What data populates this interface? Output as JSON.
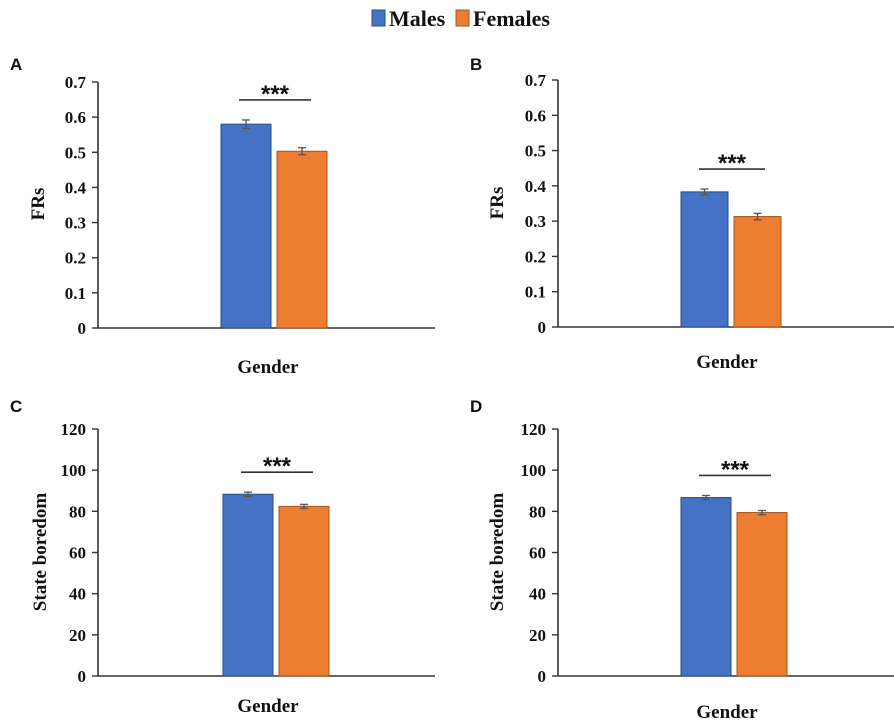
{
  "legend": {
    "items": [
      {
        "label": "Males",
        "color": "#4472C4"
      },
      {
        "label": "Females",
        "color": "#ED7D31"
      }
    ]
  },
  "chart_data": [
    {
      "panel": "A",
      "type": "bar",
      "categories": [
        "Gender"
      ],
      "series": [
        {
          "name": "Males",
          "values": [
            0.58
          ],
          "error": [
            0.012
          ]
        },
        {
          "name": "Females",
          "values": [
            0.503
          ],
          "error": [
            0.01
          ]
        }
      ],
      "xlabel": "Gender",
      "ylabel": "FRs",
      "ylim": [
        0,
        0.7
      ],
      "yticks": [
        "0",
        "0.1",
        "0.2",
        "0.3",
        "0.4",
        "0.5",
        "0.6",
        "0.7"
      ],
      "annotation": "***",
      "grid": false
    },
    {
      "panel": "B",
      "type": "bar",
      "categories": [
        "Gender"
      ],
      "series": [
        {
          "name": "Males",
          "values": [
            0.383
          ],
          "error": [
            0.008
          ]
        },
        {
          "name": "Females",
          "values": [
            0.313
          ],
          "error": [
            0.009
          ]
        }
      ],
      "xlabel": "Gender",
      "ylabel": "FRs",
      "ylim": [
        0,
        0.7
      ],
      "yticks": [
        "0",
        "0.1",
        "0.2",
        "0.3",
        "0.4",
        "0.5",
        "0.6",
        "0.7"
      ],
      "annotation": "***",
      "grid": false
    },
    {
      "panel": "C",
      "type": "bar",
      "categories": [
        "Gender"
      ],
      "series": [
        {
          "name": "Males",
          "values": [
            88.3
          ],
          "error": [
            1.0
          ]
        },
        {
          "name": "Females",
          "values": [
            82.4
          ],
          "error": [
            1.0
          ]
        }
      ],
      "xlabel": "Gender",
      "ylabel": "State boredom",
      "ylim": [
        0,
        120
      ],
      "yticks": [
        "0",
        "20",
        "40",
        "60",
        "80",
        "100",
        "120"
      ],
      "annotation": "***",
      "grid": false
    },
    {
      "panel": "D",
      "type": "bar",
      "categories": [
        "Gender"
      ],
      "series": [
        {
          "name": "Males",
          "values": [
            86.7
          ],
          "error": [
            1.0
          ]
        },
        {
          "name": "Females",
          "values": [
            79.4
          ],
          "error": [
            1.0
          ]
        }
      ],
      "xlabel": "Gender",
      "ylabel": "State boredom",
      "ylim": [
        0,
        120
      ],
      "yticks": [
        "0",
        "20",
        "40",
        "60",
        "80",
        "100",
        "120"
      ],
      "annotation": "***",
      "grid": false
    }
  ]
}
